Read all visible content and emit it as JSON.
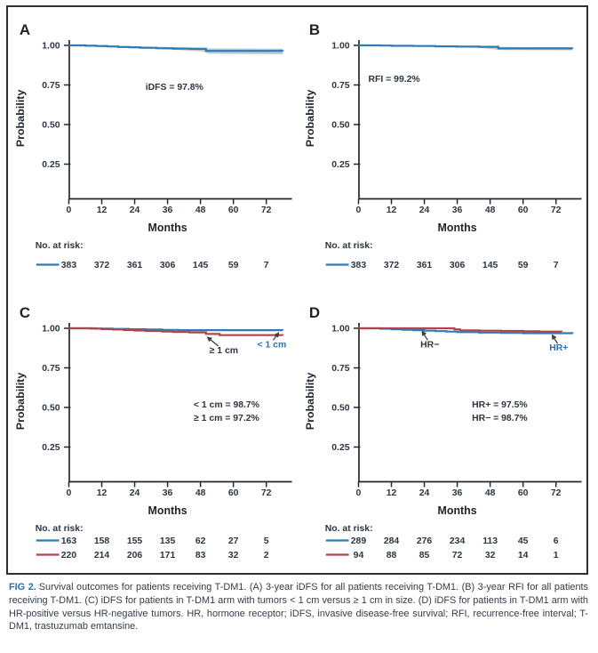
{
  "caption": {
    "fig_label": "FIG 2.",
    "text": "Survival outcomes for patients receiving T-DM1. (A) 3-year iDFS for all patients receiving T-DM1. (B) 3-year RFI for all patients receiving T-DM1. (C) iDFS for patients in T-DM1 arm with tumors < 1 cm versus ≥ 1 cm in size. (D) iDFS for patients in T-DM1 arm with HR-positive versus HR-negative tumors. HR, hormone receptor; iDFS, invasive disease-free survival; RFI, recurrence-free interval; T-DM1, trastuzumab emtansine."
  },
  "labels": {
    "risk_label": "No. at risk:"
  },
  "colors": {
    "blue": "#2e7cb5",
    "red": "#b2434e",
    "band": "rgba(122,134,146,0.45)",
    "axis": "#23282e",
    "text": "#2c3540",
    "title": "#1d232b",
    "leader": "#3a4047",
    "label_blue": "#2f6fa8",
    "caption_fig": "#2d6da5",
    "border": "#2b2f34"
  },
  "chart_data": [
    {
      "panel": "A",
      "type": "line",
      "xlabel": "Months",
      "ylabel": "Probability",
      "x_ticks": [
        0,
        12,
        24,
        36,
        48,
        60,
        72
      ],
      "y_tick_labels": [
        "1.00",
        "0.75",
        "0.50",
        "0.25"
      ],
      "y_tick_values": [
        1.0,
        0.75,
        0.5,
        0.25
      ],
      "xlim": [
        0,
        80
      ],
      "annotations": [
        {
          "text": "iDFS = 97.8%",
          "x": 38.5,
          "y": 0.72
        }
      ],
      "curve_labels": [],
      "series": [
        {
          "name": "iDFS",
          "color": "blue",
          "points": [
            [
              0,
              1.0
            ],
            [
              6,
              0.998
            ],
            [
              10,
              0.996
            ],
            [
              14,
              0.993
            ],
            [
              18,
              0.99
            ],
            [
              22,
              0.988
            ],
            [
              26,
              0.985
            ],
            [
              32,
              0.982
            ],
            [
              38,
              0.98
            ],
            [
              44,
              0.978
            ],
            [
              50,
              0.965
            ],
            [
              78,
              0.963
            ]
          ],
          "band": {
            "upper": [
              [
                0,
                1.002
              ],
              [
                20,
                0.996
              ],
              [
                40,
                0.988
              ],
              [
                49,
                0.984
              ],
              [
                51,
                0.981
              ],
              [
                78,
                0.979
              ]
            ],
            "lower": [
              [
                0,
                0.997
              ],
              [
                20,
                0.983
              ],
              [
                40,
                0.97
              ],
              [
                49,
                0.961
              ],
              [
                51,
                0.947
              ],
              [
                78,
                0.944
              ]
            ]
          }
        }
      ],
      "risk_rows": [
        {
          "color": "blue",
          "counts": [
            383,
            372,
            361,
            306,
            145,
            59,
            7
          ]
        }
      ]
    },
    {
      "panel": "B",
      "type": "line",
      "xlabel": "Months",
      "ylabel": "Probability",
      "x_ticks": [
        0,
        12,
        24,
        36,
        48,
        60,
        72
      ],
      "y_tick_labels": [
        "1.00",
        "0.75",
        "0.50",
        "0.25"
      ],
      "y_tick_values": [
        1.0,
        0.75,
        0.5,
        0.25
      ],
      "xlim": [
        0,
        80
      ],
      "annotations": [
        {
          "text": "RFI = 99.2%",
          "x": 13,
          "y": 0.77
        }
      ],
      "curve_labels": [],
      "series": [
        {
          "name": "RFI",
          "color": "blue",
          "points": [
            [
              0,
              1.0
            ],
            [
              8,
              0.999
            ],
            [
              12,
              0.997
            ],
            [
              20,
              0.996
            ],
            [
              28,
              0.994
            ],
            [
              36,
              0.992
            ],
            [
              44,
              0.991
            ],
            [
              51,
              0.981
            ],
            [
              78,
              0.98
            ]
          ],
          "band": {
            "upper": [
              [
                0,
                1.002
              ],
              [
                24,
                0.999
              ],
              [
                44,
                0.996
              ],
              [
                52,
                0.99
              ],
              [
                78,
                0.988
              ]
            ],
            "lower": [
              [
                0,
                0.998
              ],
              [
                24,
                0.991
              ],
              [
                44,
                0.985
              ],
              [
                52,
                0.971
              ],
              [
                78,
                0.969
              ]
            ]
          }
        }
      ],
      "risk_rows": [
        {
          "color": "blue",
          "counts": [
            383,
            372,
            361,
            306,
            145,
            59,
            7
          ]
        }
      ]
    },
    {
      "panel": "C",
      "type": "line",
      "xlabel": "Months",
      "ylabel": "Probability",
      "x_ticks": [
        0,
        12,
        24,
        36,
        48,
        60,
        72
      ],
      "y_tick_labels": [
        "1.00",
        "0.75",
        "0.50",
        "0.25"
      ],
      "y_tick_values": [
        1.0,
        0.75,
        0.5,
        0.25
      ],
      "xlim": [
        0,
        80
      ],
      "annotations": [
        {
          "text": "< 1 cm = 98.7%",
          "x": 57.5,
          "y": 0.5
        },
        {
          "text": "≥ 1 cm = 97.2%",
          "x": 57.5,
          "y": 0.415
        }
      ],
      "curve_labels": [
        {
          "text": "≥ 1 cm",
          "x": 56.5,
          "y": 0.862,
          "color": "text",
          "leader": [
            54.5,
            0.888,
            50.5,
            0.944
          ]
        },
        {
          "text": "< 1 cm",
          "x": 74,
          "y": 0.9,
          "color": "label_blue",
          "leader": [
            74.5,
            0.925,
            76.5,
            0.972
          ]
        }
      ],
      "series": [
        {
          "name": "< 1 cm",
          "color": "blue",
          "points": [
            [
              0,
              1.0
            ],
            [
              10,
              0.998
            ],
            [
              16,
              0.996
            ],
            [
              22,
              0.994
            ],
            [
              28,
              0.992
            ],
            [
              34,
              0.99
            ],
            [
              40,
              0.988
            ],
            [
              78,
              0.987
            ]
          ]
        },
        {
          "name": "≥ 1 cm",
          "color": "red",
          "points": [
            [
              0,
              1.0
            ],
            [
              8,
              0.998
            ],
            [
              12,
              0.995
            ],
            [
              16,
              0.992
            ],
            [
              20,
              0.989
            ],
            [
              24,
              0.986
            ],
            [
              28,
              0.983
            ],
            [
              34,
              0.98
            ],
            [
              38,
              0.977
            ],
            [
              44,
              0.974
            ],
            [
              50,
              0.964
            ],
            [
              55,
              0.957
            ],
            [
              78,
              0.955
            ]
          ]
        }
      ],
      "risk_rows": [
        {
          "color": "blue",
          "counts": [
            163,
            158,
            155,
            135,
            62,
            27,
            5
          ]
        },
        {
          "color": "red",
          "counts": [
            220,
            214,
            206,
            171,
            83,
            32,
            2
          ]
        }
      ]
    },
    {
      "panel": "D",
      "type": "line",
      "xlabel": "Months",
      "ylabel": "Probability",
      "x_ticks": [
        0,
        12,
        24,
        36,
        48,
        60,
        72
      ],
      "y_tick_labels": [
        "1.00",
        "0.75",
        "0.50",
        "0.25"
      ],
      "y_tick_values": [
        1.0,
        0.75,
        0.5,
        0.25
      ],
      "xlim": [
        0,
        80
      ],
      "annotations": [
        {
          "text": "HR+ = 97.5%",
          "x": 51.5,
          "y": 0.5
        },
        {
          "text": "HR− = 98.7%",
          "x": 51.5,
          "y": 0.415
        }
      ],
      "curve_labels": [
        {
          "text": "HR−",
          "x": 26,
          "y": 0.9,
          "color": "text",
          "leader": [
            25.2,
            0.925,
            23.2,
            0.982
          ]
        },
        {
          "text": "HR+",
          "x": 73,
          "y": 0.878,
          "color": "label_blue",
          "leader": [
            72.6,
            0.903,
            70.6,
            0.958
          ]
        }
      ],
      "series": [
        {
          "name": "HR+",
          "color": "blue",
          "points": [
            [
              0,
              1.0
            ],
            [
              8,
              0.997
            ],
            [
              12,
              0.994
            ],
            [
              16,
              0.991
            ],
            [
              20,
              0.988
            ],
            [
              24,
              0.985
            ],
            [
              28,
              0.982
            ],
            [
              32,
              0.979
            ],
            [
              36,
              0.976
            ],
            [
              44,
              0.973
            ],
            [
              52,
              0.971
            ],
            [
              60,
              0.969
            ],
            [
              78,
              0.965
            ]
          ]
        },
        {
          "name": "HR−",
          "color": "red",
          "points": [
            [
              0,
              1.0
            ],
            [
              33,
              1.0
            ],
            [
              35,
              0.993
            ],
            [
              37,
              0.987
            ],
            [
              44,
              0.985
            ],
            [
              52,
              0.983
            ],
            [
              60,
              0.981
            ],
            [
              66,
              0.979
            ],
            [
              74,
              0.977
            ]
          ]
        }
      ],
      "risk_rows": [
        {
          "color": "blue",
          "counts": [
            289,
            284,
            276,
            234,
            113,
            45,
            6
          ]
        },
        {
          "color": "red",
          "counts": [
            94,
            88,
            85,
            72,
            32,
            14,
            1
          ]
        }
      ]
    }
  ]
}
